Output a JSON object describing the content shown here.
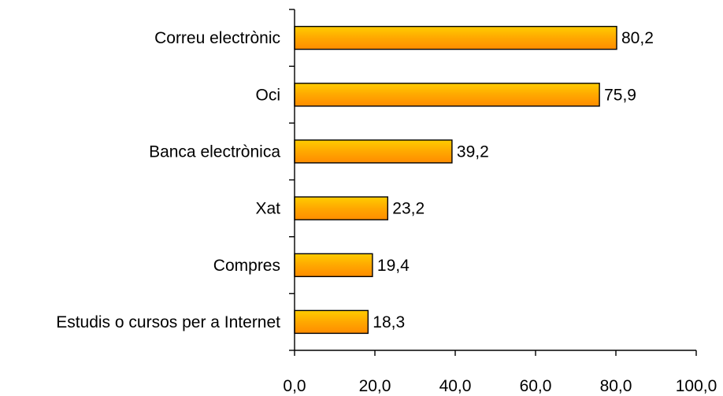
{
  "chart_data": {
    "type": "bar",
    "orientation": "horizontal",
    "categories": [
      "Correu electrònic",
      "Oci",
      "Banca electrònica",
      "Xat",
      "Compres",
      "Estudis o cursos per a Internet"
    ],
    "values": [
      80.2,
      75.9,
      39.2,
      23.2,
      19.4,
      18.3
    ],
    "value_labels": [
      "80,2",
      "75,9",
      "39,2",
      "23,2",
      "19,4",
      "18,3"
    ],
    "xlim": [
      0,
      100
    ],
    "xticks": [
      0,
      20,
      40,
      60,
      80,
      100
    ],
    "xtick_labels": [
      "0,0",
      "20,0",
      "40,0",
      "60,0",
      "80,0",
      "100,0"
    ],
    "title": "",
    "xlabel": "",
    "ylabel": "",
    "grid": false,
    "legend": "none",
    "colors": {
      "bar_top": "#ffcc00",
      "bar_mid": "#ffa800",
      "bar_bottom": "#ff8c00",
      "bar_stroke": "#000000",
      "axis": "#000000"
    }
  }
}
